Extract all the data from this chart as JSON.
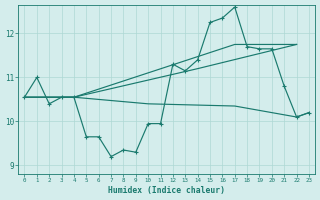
{
  "title": "",
  "xlabel": "Humidex (Indice chaleur)",
  "bg_color": "#d4edec",
  "grid_color": "#aed8d4",
  "line_color": "#1a7a6e",
  "xlim": [
    -0.5,
    23.5
  ],
  "ylim": [
    8.8,
    12.65
  ],
  "yticks": [
    9,
    10,
    11,
    12
  ],
  "xticks": [
    0,
    1,
    2,
    3,
    4,
    5,
    6,
    7,
    8,
    9,
    10,
    11,
    12,
    13,
    14,
    15,
    16,
    17,
    18,
    19,
    20,
    21,
    22,
    23
  ],
  "line1_x": [
    0,
    1,
    2,
    3,
    4,
    5,
    6,
    7,
    8,
    9,
    10,
    11,
    12,
    13,
    14,
    15,
    16,
    17,
    18,
    19,
    20,
    21,
    22,
    23
  ],
  "line1_y": [
    10.55,
    11.0,
    10.4,
    10.55,
    10.55,
    9.65,
    9.65,
    9.2,
    9.35,
    9.3,
    9.95,
    9.95,
    11.3,
    11.15,
    11.4,
    12.25,
    12.35,
    12.6,
    11.7,
    11.65,
    11.65,
    10.8,
    10.1,
    10.2
  ],
  "line2_x": [
    0,
    4,
    17,
    22
  ],
  "line2_y": [
    10.55,
    10.55,
    11.75,
    11.75
  ],
  "line3_x": [
    0,
    4,
    14,
    22
  ],
  "line3_y": [
    10.55,
    10.55,
    11.2,
    11.75
  ],
  "line4_x": [
    0,
    4,
    10,
    17,
    22,
    23
  ],
  "line4_y": [
    10.55,
    10.55,
    10.4,
    10.35,
    10.1,
    10.2
  ]
}
